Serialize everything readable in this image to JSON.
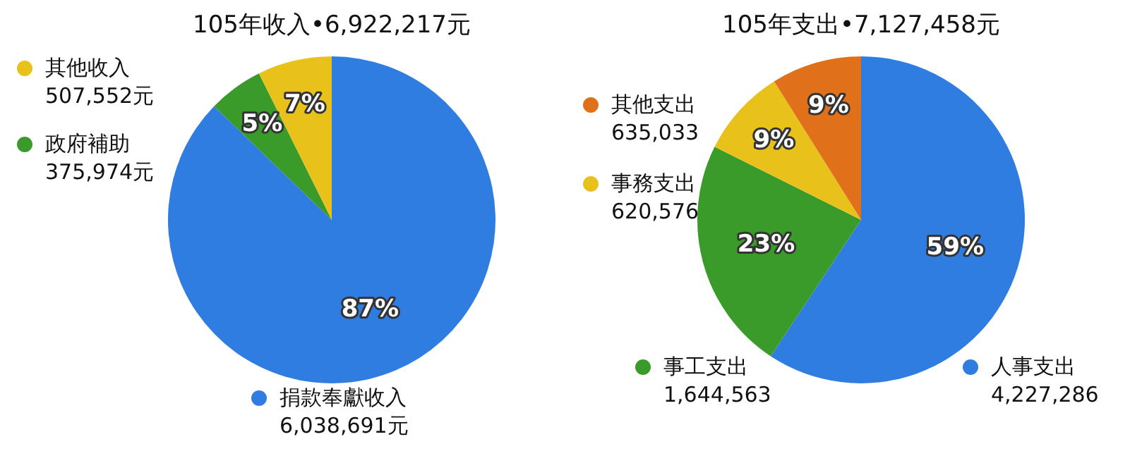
{
  "chart_data": [
    {
      "type": "pie",
      "title": "105年收入•6,922,217元",
      "categories": [
        "捐款奉獻收入",
        "政府補助",
        "其他收入"
      ],
      "values": [
        87.24,
        5.43,
        7.33
      ],
      "colors": [
        "#2f7de1",
        "#3a9a2a",
        "#e8c21a"
      ],
      "value_labels": [
        "87%",
        "5%",
        "7%"
      ],
      "annotations": [
        "6,038,691元",
        "375,974元",
        "507,552元"
      ],
      "legend": "left"
    },
    {
      "type": "pie",
      "title": "105年支出•7,127,458元",
      "categories": [
        "人事支出",
        "事工支出",
        "事務支出",
        "其他支出"
      ],
      "values": [
        59.31,
        23.07,
        8.71,
        8.91
      ],
      "colors": [
        "#2f7de1",
        "#3a9a2a",
        "#e8c21a",
        "#e0701a"
      ],
      "value_labels": [
        "59%",
        "23%",
        "9%",
        "9%"
      ],
      "annotations": [
        "4,227,286",
        "1,644,563",
        "620,576",
        "635,033"
      ],
      "legend": "left"
    }
  ]
}
